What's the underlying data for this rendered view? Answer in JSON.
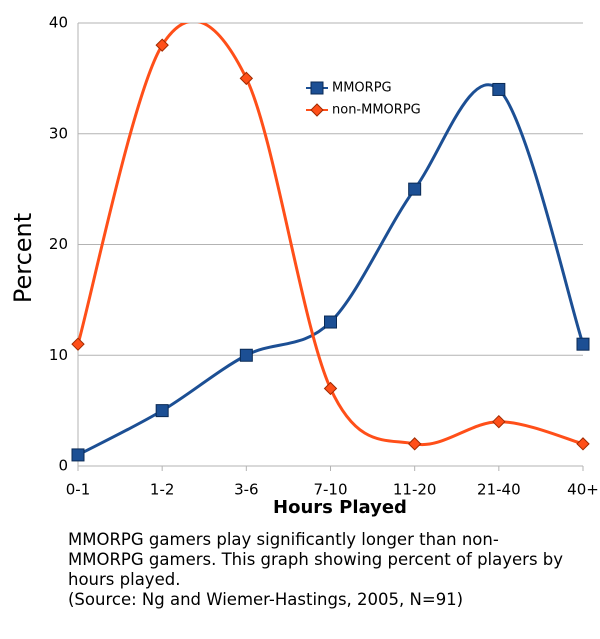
{
  "chart_data": {
    "type": "line",
    "x_label": "Hours Played",
    "y_label": "Percent",
    "categories": [
      "0-1",
      "1-2",
      "3-6",
      "7-10",
      "11-20",
      "21-40",
      "40+"
    ],
    "series": [
      {
        "name": "MMORPG",
        "color": "#1c4f94",
        "marker": "square",
        "values": [
          1,
          5,
          10,
          13,
          25,
          34,
          11
        ]
      },
      {
        "name": "non-MMORPG",
        "color": "#ff4f19",
        "marker": "diamond",
        "values": [
          11,
          38,
          35,
          7,
          2,
          4,
          2
        ]
      }
    ],
    "ylim": [
      0,
      40
    ],
    "yticks": [
      0,
      10,
      20,
      30,
      40
    ],
    "grid": true,
    "smooth": true,
    "legend": "upper-center",
    "caption": [
      "MMORPG gamers play significantly longer than non-",
      "MMORPG gamers. This graph showing percent of players by",
      "hours played.",
      "(Source: Ng and Wiemer-Hastings, 2005, N=91)"
    ]
  }
}
